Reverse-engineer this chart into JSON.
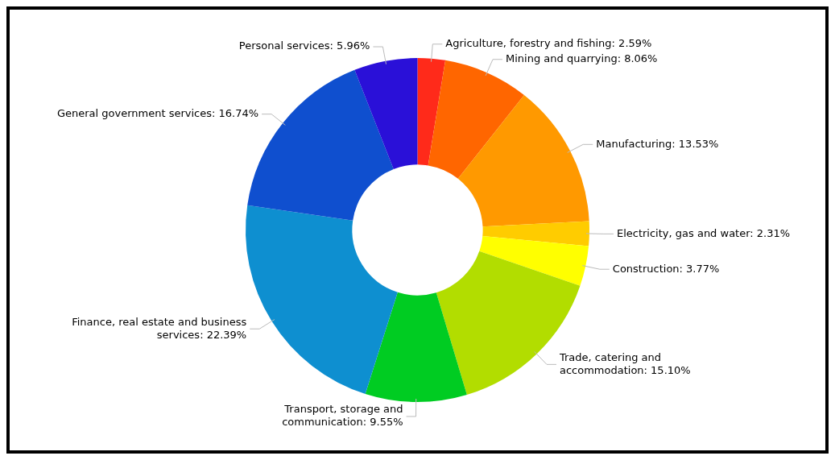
{
  "chart_data": {
    "type": "donut",
    "categories": [
      "Agriculture, forestry and fishing",
      "Mining and quarrying",
      "Manufacturing",
      "Electricity, gas and water",
      "Construction",
      "Trade, catering and accommodation",
      "Transport, storage and communication",
      "Finance, real estate and business services",
      "General government services",
      "Personal services"
    ],
    "values": [
      2.59,
      8.06,
      13.53,
      2.31,
      3.77,
      15.1,
      9.55,
      22.39,
      16.74,
      5.96
    ],
    "value_labels": [
      "2.59%",
      "8.06%",
      "13.53%",
      "2.31%",
      "3.77%",
      "15.10%",
      "9.55%",
      "22.39%",
      "16.74%",
      "5.96%"
    ],
    "colors": [
      "#ff2a1a",
      "#ff6600",
      "#ff9900",
      "#ffcc00",
      "#ffff00",
      "#b2dd00",
      "#00cc22",
      "#0e8fd0",
      "#0f4fcf",
      "#2a10d8"
    ],
    "legend": false
  }
}
